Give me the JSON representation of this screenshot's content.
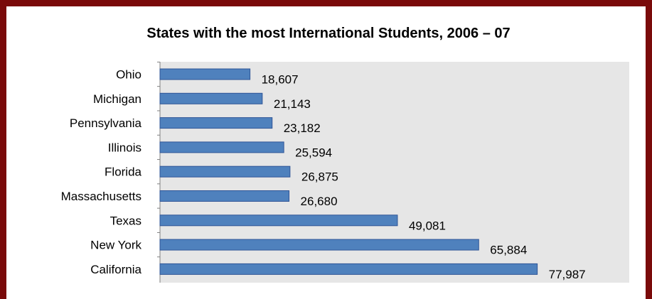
{
  "chart_data": {
    "type": "bar",
    "orientation": "horizontal",
    "title": "States with the most International Students, 2006 – 07",
    "xlabel": "",
    "ylabel": "",
    "categories": [
      "Ohio",
      "Michigan",
      "Pennsylvania",
      "Illinois",
      "Florida",
      "Massachusetts",
      "Texas",
      "New York",
      "California"
    ],
    "values": [
      18607,
      21143,
      23182,
      25594,
      26875,
      26680,
      49081,
      65884,
      77987
    ],
    "value_labels": [
      "18,607",
      "21,143",
      "23,182",
      "25,594",
      "26,875",
      "26,680",
      "49,081",
      "65,884",
      "77,987"
    ],
    "xlim": [
      0,
      97000
    ],
    "grid": false,
    "legend": "none",
    "bar_color": "#4f81bd",
    "bar_edge_color": "#2f5597",
    "plot_bg_color": "#e6e6e6",
    "frame_color": "#7a0a0a"
  }
}
